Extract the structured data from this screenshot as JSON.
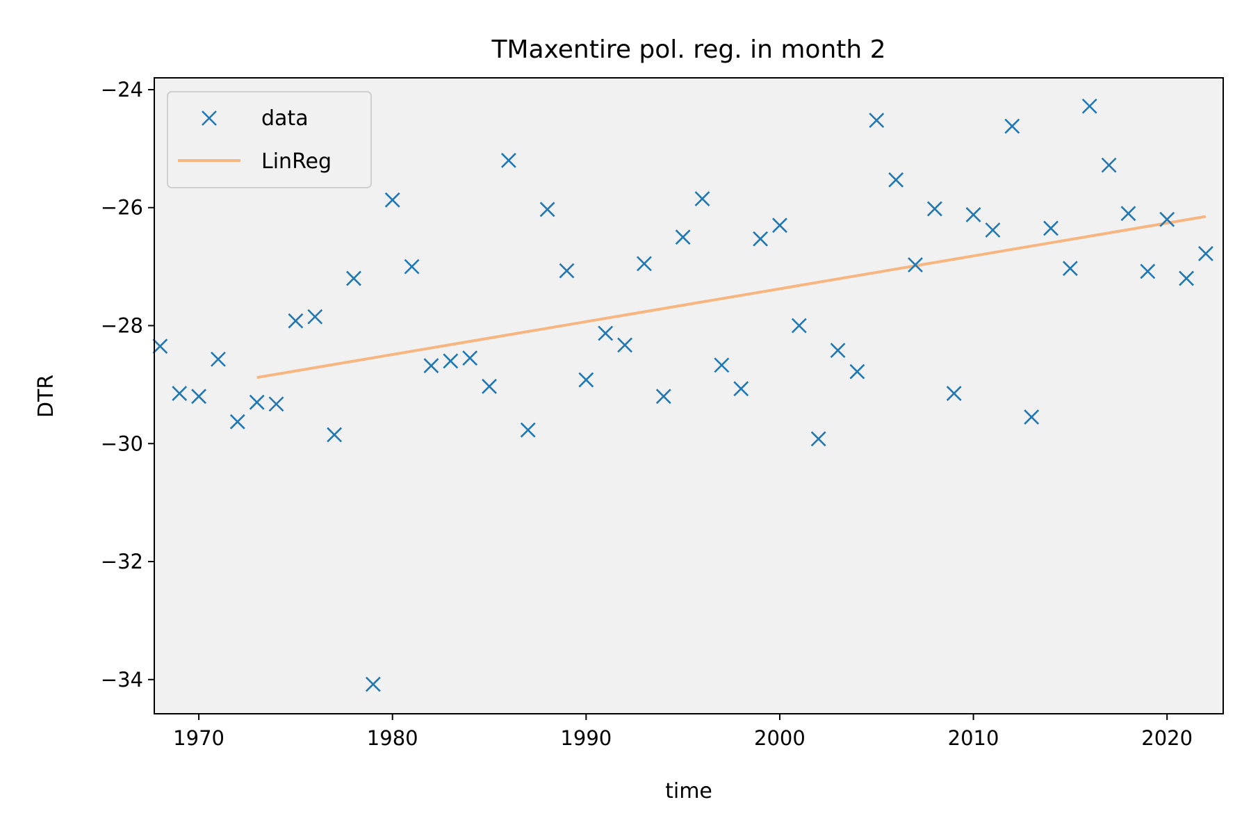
{
  "chart_data": {
    "type": "scatter",
    "title": "TMaxentire pol. reg. in month 2",
    "xlabel": "time",
    "ylabel": "DTR",
    "xlim": [
      1967.7,
      2022.9
    ],
    "ylim": [
      -34.58,
      -23.8
    ],
    "xticks": [
      1970,
      1980,
      1990,
      2000,
      2010,
      2020
    ],
    "xtick_labels": [
      "1970",
      "1980",
      "1990",
      "2000",
      "2010",
      "2020"
    ],
    "yticks": [
      -24,
      -26,
      -28,
      -30,
      -32,
      -34
    ],
    "ytick_labels": [
      "−24",
      "−26",
      "−28",
      "−30",
      "−32",
      "−34"
    ],
    "grid": false,
    "legend_position": "top-left",
    "background": "#f1f1f1",
    "series": [
      {
        "name": "data",
        "kind": "marker-x",
        "color": "#1f77b4",
        "x": [
          1968,
          1969,
          1970,
          1971,
          1972,
          1973,
          1974,
          1975,
          1976,
          1977,
          1978,
          1979,
          1980,
          1981,
          1982,
          1983,
          1984,
          1985,
          1986,
          1987,
          1988,
          1989,
          1990,
          1991,
          1992,
          1993,
          1994,
          1995,
          1996,
          1997,
          1998,
          1999,
          2000,
          2001,
          2002,
          2003,
          2004,
          2005,
          2006,
          2007,
          2008,
          2009,
          2010,
          2011,
          2012,
          2013,
          2014,
          2015,
          2016,
          2017,
          2018,
          2019,
          2020,
          2021,
          2022
        ],
        "y": [
          -28.35,
          -29.15,
          -29.2,
          -28.57,
          -29.63,
          -29.3,
          -29.33,
          -27.92,
          -27.85,
          -29.85,
          -27.2,
          -34.08,
          -25.87,
          -27.0,
          -28.68,
          -28.6,
          -28.55,
          -29.03,
          -25.2,
          -29.77,
          -26.03,
          -27.07,
          -28.92,
          -28.13,
          -28.33,
          -26.95,
          -29.2,
          -26.5,
          -25.85,
          -28.67,
          -29.07,
          -26.53,
          -26.3,
          -28.0,
          -29.92,
          -28.42,
          -28.78,
          -24.52,
          -25.53,
          -26.97,
          -26.02,
          -29.15,
          -26.12,
          -26.38,
          -24.62,
          -29.55,
          -26.35,
          -27.03,
          -24.28,
          -25.28,
          -26.1,
          -27.08,
          -26.2,
          -27.2,
          -26.78
        ]
      },
      {
        "name": "LinReg",
        "kind": "line",
        "color": "#f7b57f",
        "x": [
          1973,
          2022
        ],
        "y": [
          -28.88,
          -26.15
        ]
      }
    ]
  }
}
